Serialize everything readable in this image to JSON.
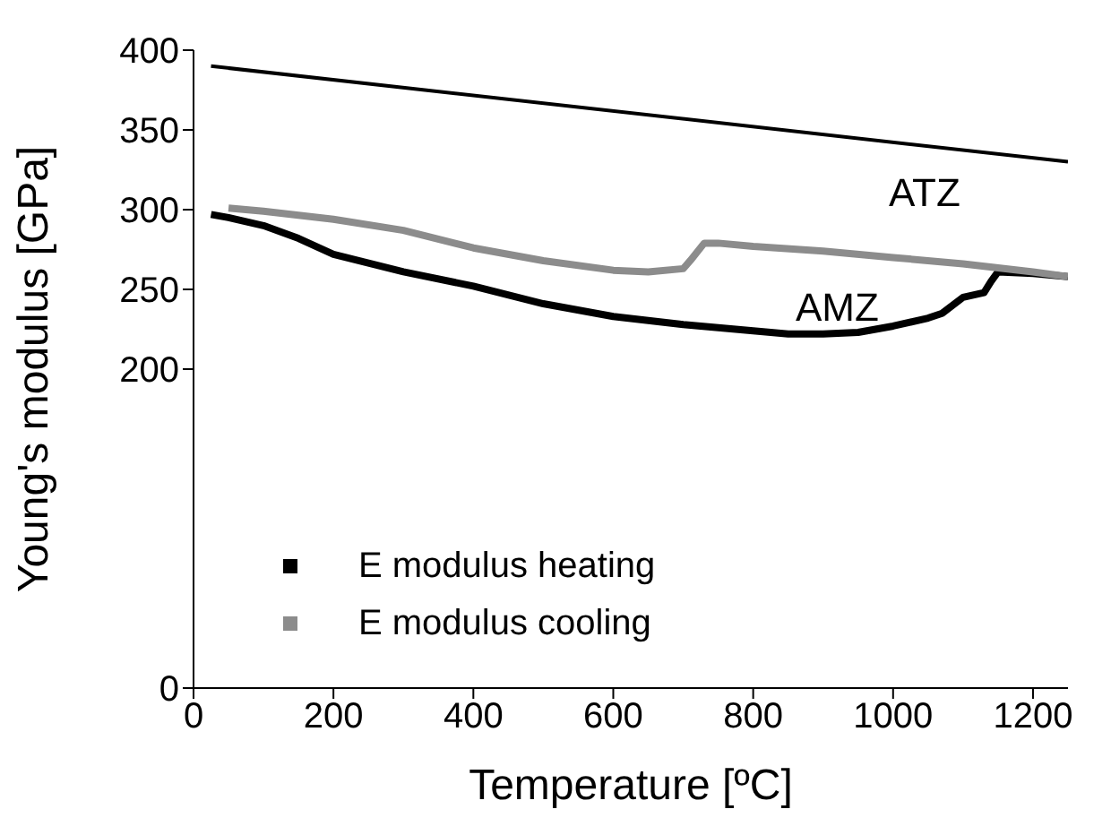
{
  "chart_data": {
    "type": "line",
    "xlabel": "Temperature [ºC]",
    "ylabel": "Young's modulus [GPa]",
    "xlim": [
      0,
      1250
    ],
    "xticks": [
      0,
      200,
      400,
      600,
      800,
      1000,
      1200
    ],
    "ylim": [
      0,
      400
    ],
    "yticks": [
      0,
      200,
      250,
      300,
      350,
      400
    ],
    "grid": false,
    "legend": "bottom left",
    "marker": "none",
    "line_style": "solid",
    "annotations": [
      "ATZ",
      "AMZ"
    ],
    "series": [
      {
        "color": "#000000",
        "x": [
          25,
          1250
        ],
        "values": [
          390,
          330
        ]
      },
      {
        "name": "E  modulus heating",
        "color": "#000000",
        "x": [
          25,
          50,
          100,
          150,
          200,
          300,
          400,
          500,
          600,
          700,
          800,
          850,
          900,
          950,
          1000,
          1050,
          1070,
          1100,
          1130,
          1140,
          1150,
          1200,
          1250
        ],
        "values": [
          297,
          295,
          290,
          282,
          272,
          261,
          252,
          241,
          233,
          228,
          224,
          222,
          222,
          223,
          227,
          232,
          235,
          245,
          248,
          255,
          261,
          260,
          258
        ]
      },
      {
        "name": "E  modulus cooling",
        "color": "#8c8c8c",
        "x": [
          50,
          100,
          200,
          300,
          400,
          500,
          600,
          650,
          700,
          710,
          730,
          750,
          800,
          900,
          1000,
          1100,
          1200,
          1250
        ],
        "values": [
          301,
          299,
          294,
          287,
          276,
          268,
          262,
          261,
          263,
          268,
          279,
          279,
          277,
          274,
          270,
          266,
          261,
          258
        ]
      }
    ]
  }
}
